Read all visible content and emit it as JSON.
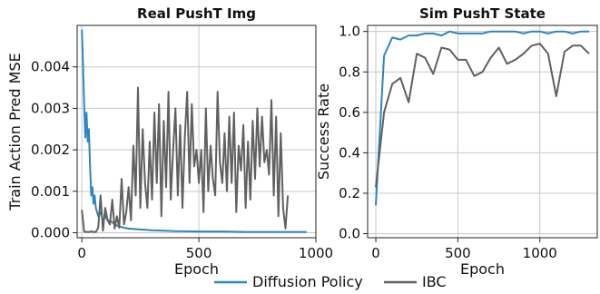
{
  "chart_data": [
    {
      "type": "line",
      "title": "Real PushT Img",
      "xlabel": "Epoch",
      "ylabel": "Train Action Pred MSE",
      "xlim": [
        -20,
        1000
      ],
      "ylim": [
        -0.00012,
        0.005
      ],
      "xticks": [
        0,
        500,
        1000
      ],
      "xtick_labels": [
        "0",
        "500",
        "1000"
      ],
      "yticks": [
        0,
        0.001,
        0.002,
        0.003,
        0.004
      ],
      "ytick_labels": [
        "0.000",
        "0.001",
        "0.002",
        "0.003",
        "0.004"
      ],
      "grid": true,
      "series": [
        {
          "name": "Diffusion Policy",
          "color": "#2e86c1",
          "x": [
            0,
            5,
            10,
            15,
            20,
            25,
            30,
            35,
            40,
            45,
            50,
            55,
            60,
            65,
            70,
            80,
            90,
            100,
            110,
            120,
            140,
            160,
            180,
            200,
            250,
            300,
            350,
            400,
            500,
            600,
            700,
            800,
            900,
            960
          ],
          "y": [
            0.0049,
            0.0041,
            0.0031,
            0.0023,
            0.0029,
            0.0022,
            0.0025,
            0.0016,
            0.0009,
            0.0011,
            0.0007,
            0.0009,
            0.0006,
            0.0005,
            0.0004,
            0.0005,
            0.0003,
            0.0004,
            0.0003,
            0.0003,
            0.0002,
            0.00015,
            0.00012,
            0.0001,
            8e-05,
            6e-05,
            5e-05,
            4e-05,
            3e-05,
            3e-05,
            2e-05,
            2e-05,
            2e-05,
            2e-05
          ]
        },
        {
          "name": "IBC",
          "color": "#606060",
          "x": [
            0,
            10,
            20,
            30,
            40,
            50,
            60,
            70,
            80,
            90,
            100,
            110,
            120,
            130,
            140,
            150,
            160,
            170,
            180,
            190,
            200,
            210,
            220,
            230,
            240,
            250,
            260,
            270,
            280,
            290,
            300,
            310,
            320,
            330,
            340,
            350,
            360,
            370,
            380,
            390,
            400,
            410,
            420,
            430,
            440,
            450,
            460,
            470,
            480,
            490,
            500,
            510,
            520,
            530,
            540,
            550,
            560,
            570,
            580,
            590,
            600,
            610,
            620,
            630,
            640,
            650,
            660,
            670,
            680,
            690,
            700,
            710,
            720,
            730,
            740,
            750,
            760,
            770,
            780,
            790,
            800,
            810,
            820,
            830,
            840,
            850,
            860,
            870,
            880
          ],
          "y": [
            0.00055,
            3e-05,
            2e-05,
            2e-05,
            3e-05,
            2e-05,
            2e-05,
            0.00012,
            0.0009,
            5e-05,
            0.0006,
            0.0003,
            0.0002,
            0.0008,
            0.0001,
            0.0004,
            0.00012,
            0.0013,
            0.0002,
            0.0005,
            0.0011,
            0.0003,
            0.0021,
            0.0009,
            0.0035,
            0.0006,
            0.0025,
            0.0012,
            0.0006,
            0.0022,
            0.0008,
            0.0029,
            0.0012,
            0.0031,
            0.0004,
            0.0027,
            0.0011,
            0.0034,
            0.0008,
            0.002,
            0.003,
            0.0009,
            0.0026,
            0.0006,
            0.0023,
            0.0034,
            0.0012,
            0.0031,
            0.0016,
            0.002,
            0.0012,
            0.002,
            0.0005,
            0.003,
            0.001,
            0.0021,
            0.0013,
            0.0009,
            0.0034,
            0.0017,
            0.0012,
            0.0024,
            0.001,
            0.0028,
            0.0012,
            0.0029,
            0.0005,
            0.0021,
            0.0015,
            0.0026,
            0.0006,
            0.0022,
            0.0008,
            0.0027,
            0.0013,
            0.003,
            0.0016,
            0.0028,
            0.0017,
            0.002,
            0.0014,
            0.0032,
            0.0009,
            0.0028,
            0.0004,
            0.0024,
            0.0006,
            0.0001,
            0.0009
          ]
        }
      ]
    },
    {
      "type": "line",
      "title": "Sim PushT State",
      "xlabel": "Epoch",
      "ylabel": "Success Rate",
      "xlim": [
        -50,
        1350
      ],
      "ylim": [
        -0.02,
        1.03
      ],
      "xticks": [
        0,
        500,
        1000
      ],
      "xtick_labels": [
        "0",
        "500",
        "1000"
      ],
      "yticks": [
        0.0,
        0.2,
        0.4,
        0.6,
        0.8,
        1.0
      ],
      "ytick_labels": [
        "0.0",
        "0.2",
        "0.4",
        "0.6",
        "0.8",
        "1.0"
      ],
      "grid": true,
      "series": [
        {
          "name": "Diffusion Policy",
          "color": "#2e86c1",
          "x": [
            0,
            50,
            100,
            150,
            200,
            250,
            300,
            350,
            400,
            450,
            500,
            550,
            600,
            650,
            700,
            750,
            800,
            850,
            900,
            950,
            1000,
            1050,
            1100,
            1150,
            1200,
            1250,
            1300
          ],
          "y": [
            0.14,
            0.88,
            0.97,
            0.96,
            0.98,
            0.98,
            0.99,
            0.99,
            0.98,
            1.0,
            0.99,
            0.99,
            0.99,
            0.99,
            1.0,
            1.0,
            1.0,
            1.0,
            0.99,
            1.0,
            1.0,
            0.99,
            1.0,
            1.0,
            0.99,
            1.0,
            1.0
          ]
        },
        {
          "name": "IBC",
          "color": "#606060",
          "x": [
            0,
            50,
            100,
            150,
            200,
            250,
            300,
            350,
            400,
            450,
            500,
            550,
            600,
            650,
            700,
            750,
            800,
            850,
            900,
            950,
            1000,
            1050,
            1100,
            1150,
            1200,
            1250,
            1300
          ],
          "y": [
            0.23,
            0.6,
            0.74,
            0.77,
            0.65,
            0.89,
            0.87,
            0.79,
            0.92,
            0.91,
            0.86,
            0.86,
            0.78,
            0.8,
            0.87,
            0.92,
            0.84,
            0.86,
            0.89,
            0.93,
            0.94,
            0.89,
            0.68,
            0.9,
            0.93,
            0.93,
            0.89
          ]
        }
      ]
    }
  ],
  "legend": {
    "placement": "bottom-center",
    "entries": [
      {
        "label": "Diffusion Policy",
        "color": "#2e86c1"
      },
      {
        "label": "IBC",
        "color": "#606060"
      }
    ]
  }
}
